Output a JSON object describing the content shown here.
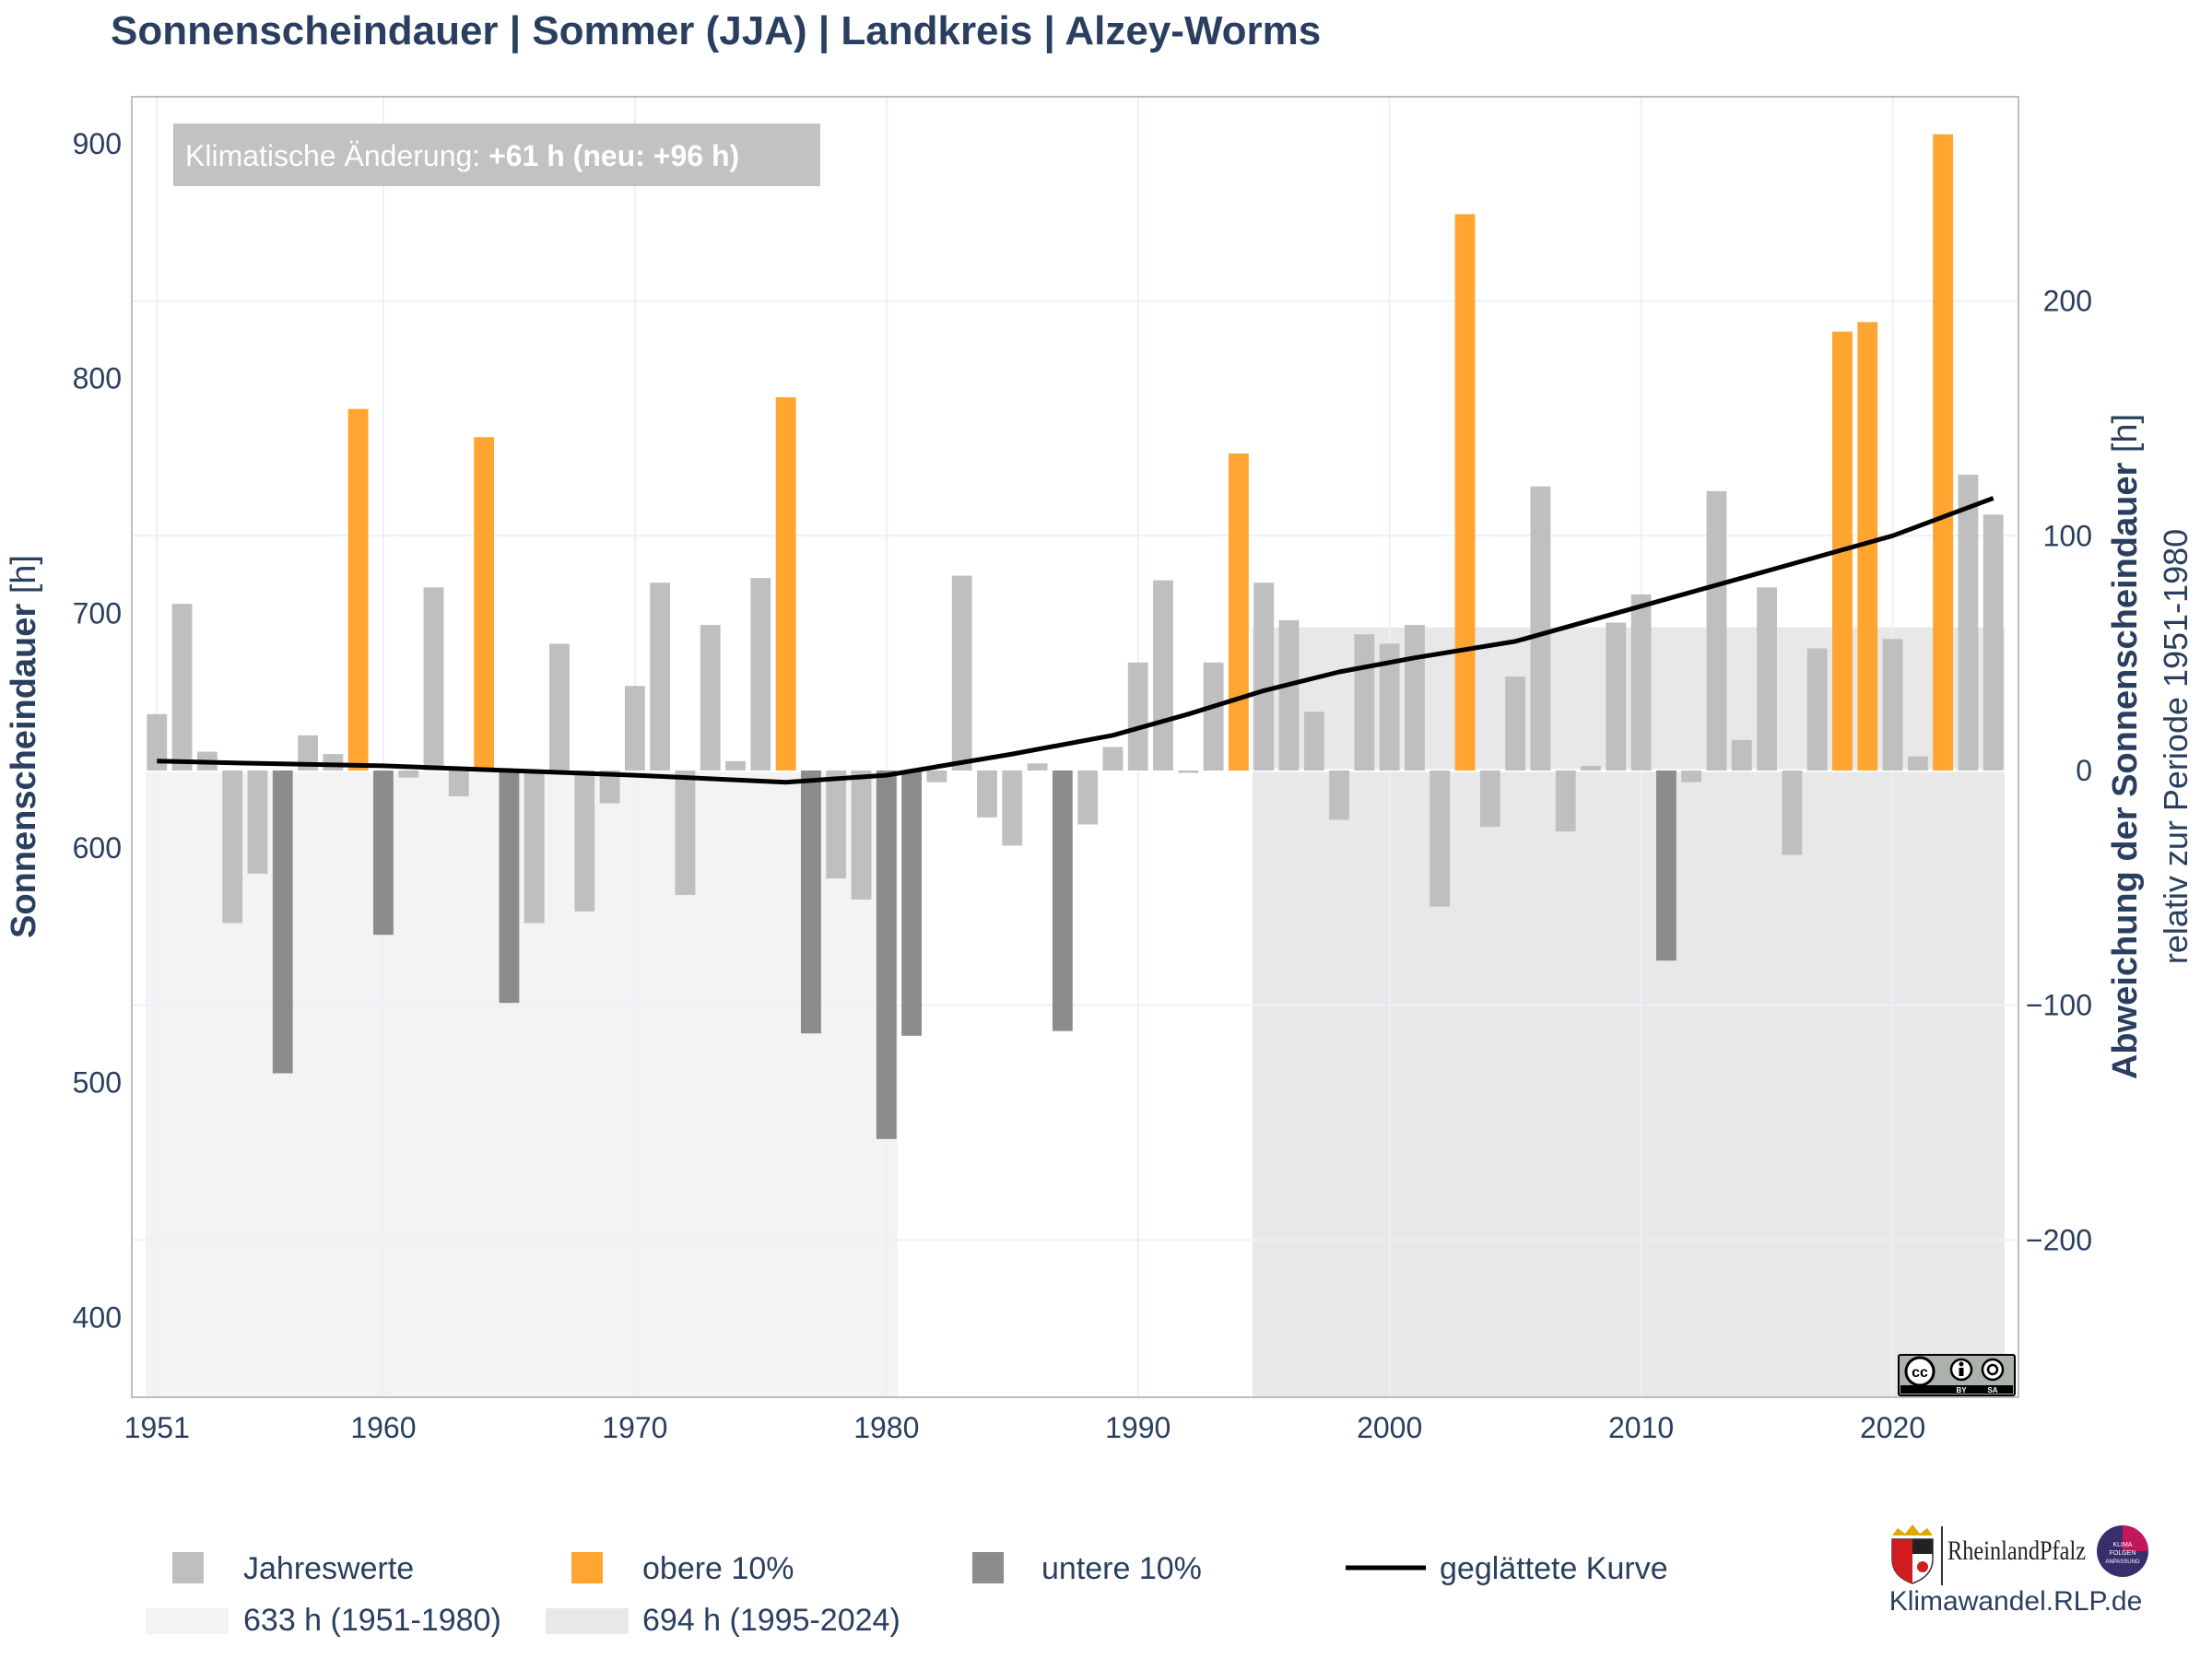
{
  "chart_data": {
    "type": "bar",
    "title": "Sonnenscheindauer | Sommer (JJA) | Landkreis | Alzey-Worms",
    "ylabel_bold": "Sonnenscheindauer",
    "ylabel_unit": " [h]",
    "y2label_bold": "Abweichung der Sonnenscheindauer",
    "y2label_unit": " [h]",
    "y2label_sub": "relativ zur Periode 1951-1980",
    "annotation_prefix": "Klimatische Änderung: ",
    "annotation_value": "+61 h (neu: +96 h)",
    "xlim": [
      1950,
      2025
    ],
    "ylim": [
      366,
      920
    ],
    "y2lim": [
      -267,
      287
    ],
    "baseline": 633,
    "x_ticks": [
      1951,
      1960,
      1970,
      1980,
      1990,
      2000,
      2010,
      2020
    ],
    "y_ticks": [
      400,
      500,
      600,
      700,
      800,
      900
    ],
    "y2_ticks": [
      -200,
      -100,
      0,
      100,
      200
    ],
    "y2_tick_labels": [
      "−200",
      "−100",
      "0",
      "100",
      "200"
    ],
    "years": [
      1951,
      1952,
      1953,
      1954,
      1955,
      1956,
      1957,
      1958,
      1959,
      1960,
      1961,
      1962,
      1963,
      1964,
      1965,
      1966,
      1967,
      1968,
      1969,
      1970,
      1971,
      1972,
      1973,
      1974,
      1975,
      1976,
      1977,
      1978,
      1979,
      1980,
      1981,
      1982,
      1983,
      1984,
      1985,
      1986,
      1987,
      1988,
      1989,
      1990,
      1991,
      1992,
      1993,
      1994,
      1995,
      1996,
      1997,
      1998,
      1999,
      2000,
      2001,
      2002,
      2003,
      2004,
      2005,
      2006,
      2007,
      2008,
      2009,
      2010,
      2011,
      2012,
      2013,
      2014,
      2015,
      2016,
      2017,
      2018,
      2019,
      2020,
      2021,
      2022,
      2023,
      2024
    ],
    "values": [
      657,
      704,
      641,
      568,
      589,
      504,
      648,
      640,
      787,
      563,
      630,
      711,
      622,
      775,
      534,
      568,
      687,
      573,
      619,
      669,
      713,
      580,
      695,
      637,
      715,
      792,
      521,
      587,
      578,
      476,
      520,
      628,
      716,
      613,
      601,
      636,
      522,
      610,
      643,
      679,
      714,
      632,
      679,
      768,
      713,
      697,
      658,
      612,
      691,
      687,
      695,
      575,
      870,
      609,
      673,
      754,
      607,
      635,
      696,
      708,
      552,
      628,
      752,
      646,
      711,
      597,
      685,
      820,
      824,
      689,
      639,
      904,
      759,
      742
    ],
    "categories_legend": [
      {
        "name": "Jahreswerte",
        "color": "#bfbfbf"
      },
      {
        "name": "obere 10%",
        "color": "#ffa530"
      },
      {
        "name": "untere 10%",
        "color": "#8c8c8c"
      },
      {
        "name": "geglättete Kurve",
        "color": "#000000"
      }
    ],
    "upper_10": [
      1959,
      1964,
      1976,
      1994,
      2003,
      2018,
      2019,
      2022
    ],
    "lower_10": [
      1956,
      1960,
      1965,
      1977,
      1980,
      1981,
      1987,
      2011
    ],
    "smoothed": {
      "x": [
        1951,
        1955,
        1960,
        1965,
        1970,
        1976,
        1980,
        1985,
        1989,
        1992,
        1995,
        1998,
        2001,
        2005,
        2010,
        2015,
        2020,
        2024
      ],
      "y": [
        637,
        636,
        635,
        633,
        631,
        628,
        631,
        640,
        648,
        657,
        667,
        675,
        681,
        688,
        703,
        718,
        733,
        749
      ]
    },
    "periods": [
      {
        "label": "633 h (1951-1980)",
        "start": 1951,
        "end": 1980,
        "value": 633,
        "color": "#f3f3f3"
      },
      {
        "label": "694 h (1995-2024)",
        "start": 1995,
        "end": 2024,
        "value": 694,
        "color": "#e8e8e8"
      }
    ]
  },
  "branding": {
    "site": "Klimawandel.RLP.de",
    "state_name": "RheinlandPfalz",
    "badge_lines": [
      "KLIMA",
      "FOLGEN",
      "ANPASSUNG"
    ],
    "license_badge": [
      "cc",
      "BY",
      "SA"
    ]
  }
}
